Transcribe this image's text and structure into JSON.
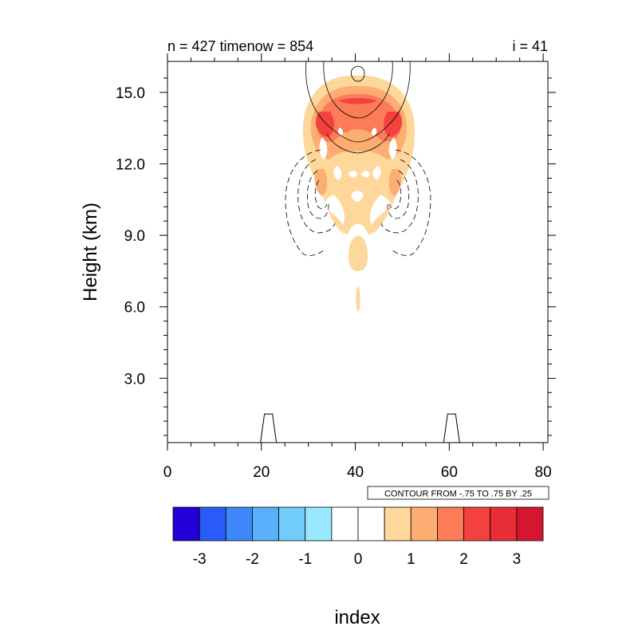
{
  "chart_data": {
    "type": "contour",
    "title_left": "n = 427 timenow = 854",
    "title_right": "i = 41",
    "xlabel": "index",
    "ylabel": "Height (km)",
    "x_ticks": [
      "0",
      "20",
      "40",
      "60",
      "80"
    ],
    "y_ticks": [
      "3.0",
      "6.0",
      "9.0",
      "12.0",
      "15.0"
    ],
    "x_tick_values": [
      0,
      20,
      40,
      60,
      80
    ],
    "y_tick_values": [
      3,
      6,
      9,
      12,
      15
    ],
    "xlim": [
      0,
      81
    ],
    "ylim": [
      0.3,
      16.3
    ],
    "contour_info": "CONTOUR FROM -.75 TO .75 BY .25",
    "colorbar": {
      "labels": [
        "-3",
        "-2",
        "-1",
        "0",
        "1",
        "2",
        "3"
      ],
      "label_values": [
        -3,
        -2,
        -1,
        0,
        1,
        2,
        3
      ],
      "min": -3.5,
      "max": 3.5,
      "colors": [
        "#2400d8",
        "#2a5af8",
        "#3d87f9",
        "#5aaffa",
        "#73cdfc",
        "#9ae8ff",
        "#ffffff",
        "#ffffff",
        "#fed79a",
        "#fdad71",
        "#fb7c57",
        "#f3423e",
        "#e82d37",
        "#d61530"
      ]
    },
    "terrain_peaks": [
      21.5,
      60.5
    ],
    "terrain_peak_height": 1.2
  }
}
